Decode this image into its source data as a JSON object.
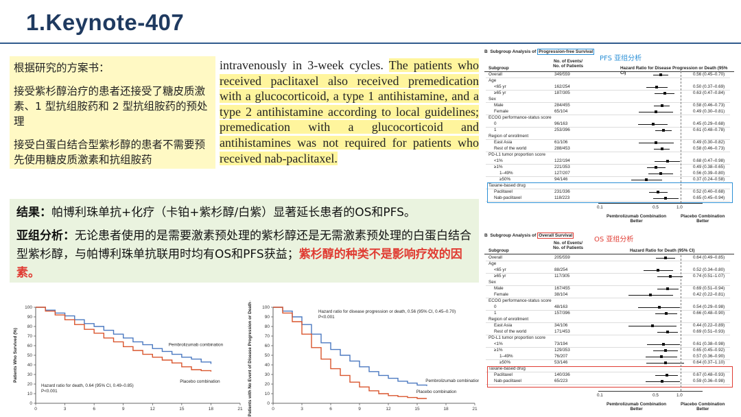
{
  "title": "1.Keynote-407",
  "protocol_box": {
    "heading": "根据研究的方案书：",
    "p1": "接受紫杉醇治疗的患者还接受了糖皮质激素、1 型抗组胺药和 2 型抗组胺药的预处理",
    "p2": "接受白蛋白结合型紫杉醇的患者不需要预先使用糖皮质激素和抗组胺药"
  },
  "quote": {
    "plain": "intravenously in 3-week cycles. ",
    "highlighted": "The patients who received paclitaxel also received premedication with a glucocorticoid, a type 1 antihistamine, and a type 2 antihistamine according to local guidelines; premedication with a glucocorticoid and antihistamines was not required for patients who received nab-paclitaxel."
  },
  "results": {
    "label1": "结果：",
    "text1": "帕博利珠单抗+化疗（卡铂+紫杉醇/白紫）显著延长患者的OS和PFS。",
    "label2": "亚组分析：",
    "text2": "无论患者使用的是需要激素预处理的紫杉醇还是无需激素预处理的白蛋白结合型紫杉醇，与帕博利珠单抗联用时均有OS和PFS获益；",
    "text2_red": "紫杉醇的种类不是影响疗效的因素。"
  },
  "pfs_forest": {
    "tag": "PFS 亚组分析",
    "panel_prefix": "B",
    "title_a": "Subgroup Analysis of ",
    "title_b": "Progression-free Survival",
    "col_subgroup": "Subgroup",
    "col_events_1": "No. of Events/",
    "col_events_2": "No. of Patients",
    "col_hr": "Hazard Ratio for Disease Progression or Death (95% CI)",
    "axis_ticks": [
      "0.1",
      "0.5",
      "1.0"
    ],
    "favor_left_1": "Pembrolizumab Combination",
    "favor_left_2": "Better",
    "favor_right_1": "Placebo Combination",
    "favor_right_2": "Better",
    "rows": [
      {
        "label": "Overall",
        "indent": 0,
        "n": "349/559",
        "hr": 0.56,
        "lo": 0.45,
        "hi": 0.7,
        "txt": "0.56 (0.45–0.70)"
      },
      {
        "label": "Age",
        "indent": 0,
        "n": "",
        "hr": null,
        "txt": ""
      },
      {
        "label": "<65 yr",
        "indent": 1,
        "n": "162/254",
        "hr": 0.5,
        "lo": 0.37,
        "hi": 0.69,
        "txt": "0.50 (0.37–0.69)"
      },
      {
        "label": "≥65 yr",
        "indent": 1,
        "n": "187/305",
        "hr": 0.63,
        "lo": 0.47,
        "hi": 0.84,
        "txt": "0.63 (0.47–0.84)"
      },
      {
        "label": "Sex",
        "indent": 0,
        "n": "",
        "hr": null,
        "txt": ""
      },
      {
        "label": "Male",
        "indent": 1,
        "n": "284/455",
        "hr": 0.58,
        "lo": 0.46,
        "hi": 0.73,
        "txt": "0.58 (0.46–0.73)"
      },
      {
        "label": "Female",
        "indent": 1,
        "n": "65/104",
        "hr": 0.49,
        "lo": 0.3,
        "hi": 0.81,
        "txt": "0.49 (0.30–0.81)"
      },
      {
        "label": "ECOG performance-status score",
        "indent": 0,
        "n": "",
        "hr": null,
        "txt": ""
      },
      {
        "label": "0",
        "indent": 1,
        "n": "96/163",
        "hr": 0.45,
        "lo": 0.29,
        "hi": 0.68,
        "txt": "0.45 (0.29–0.68)"
      },
      {
        "label": "1",
        "indent": 1,
        "n": "253/396",
        "hr": 0.61,
        "lo": 0.48,
        "hi": 0.78,
        "txt": "0.61 (0.48–0.78)"
      },
      {
        "label": "Region of enrollment",
        "indent": 0,
        "n": "",
        "hr": null,
        "txt": ""
      },
      {
        "label": "East Asia",
        "indent": 1,
        "n": "61/106",
        "hr": 0.49,
        "lo": 0.3,
        "hi": 0.82,
        "txt": "0.49 (0.30–0.82)"
      },
      {
        "label": "Rest of the world",
        "indent": 1,
        "n": "288/453",
        "hr": 0.58,
        "lo": 0.46,
        "hi": 0.73,
        "txt": "0.58 (0.46–0.73)"
      },
      {
        "label": "PD-L1 tumor proportion score",
        "indent": 0,
        "n": "",
        "hr": null,
        "txt": ""
      },
      {
        "label": "<1%",
        "indent": 1,
        "n": "122/194",
        "hr": 0.68,
        "lo": 0.47,
        "hi": 0.98,
        "txt": "0.68 (0.47–0.98)"
      },
      {
        "label": "≥1%",
        "indent": 1,
        "n": "221/353",
        "hr": 0.49,
        "lo": 0.38,
        "hi": 0.65,
        "txt": "0.49 (0.38–0.65)"
      },
      {
        "label": "1–49%",
        "indent": 2,
        "n": "127/207",
        "hr": 0.56,
        "lo": 0.39,
        "hi": 0.8,
        "txt": "0.56 (0.39–0.80)"
      },
      {
        "label": "≥50%",
        "indent": 2,
        "n": "94/146",
        "hr": 0.37,
        "lo": 0.24,
        "hi": 0.58,
        "txt": "0.37 (0.24–0.58)"
      },
      {
        "label": "Taxane-based drug",
        "indent": 0,
        "n": "",
        "hr": null,
        "txt": ""
      },
      {
        "label": "Paclitaxel",
        "indent": 1,
        "n": "231/336",
        "hr": 0.52,
        "lo": 0.4,
        "hi": 0.68,
        "txt": "0.52 (0.40–0.68)"
      },
      {
        "label": "Nab-paclitaxel",
        "indent": 1,
        "n": "118/223",
        "hr": 0.65,
        "lo": 0.45,
        "hi": 0.94,
        "txt": "0.65 (0.45–0.94)"
      }
    ]
  },
  "os_forest": {
    "tag": "OS 亚组分析",
    "panel_prefix": "B",
    "title_a": "Subgroup Analysis of ",
    "title_b": "Overall Survival",
    "col_subgroup": "Subgroup",
    "col_events_1": "No. of Events/",
    "col_events_2": "No. of Patients",
    "col_hr": "Hazard Ratio for Death (95% CI)",
    "axis_ticks": [
      "0.1",
      "0.5",
      "1.0"
    ],
    "favor_left_1": "Pembrolizumab Combination",
    "favor_left_2": "Better",
    "favor_right_1": "Placebo Combination",
    "favor_right_2": "Better",
    "rows": [
      {
        "label": "Overall",
        "indent": 0,
        "n": "205/559",
        "hr": 0.64,
        "lo": 0.49,
        "hi": 0.85,
        "txt": "0.64 (0.49–0.85)"
      },
      {
        "label": "Age",
        "indent": 0,
        "n": "",
        "hr": null,
        "txt": ""
      },
      {
        "label": "<65 yr",
        "indent": 1,
        "n": "88/254",
        "hr": 0.52,
        "lo": 0.34,
        "hi": 0.8,
        "txt": "0.52 (0.34–0.80)"
      },
      {
        "label": "≥65 yr",
        "indent": 1,
        "n": "117/305",
        "hr": 0.74,
        "lo": 0.51,
        "hi": 1.07,
        "txt": "0.74 (0.51–1.07)"
      },
      {
        "label": "Sex",
        "indent": 0,
        "n": "",
        "hr": null,
        "txt": ""
      },
      {
        "label": "Male",
        "indent": 1,
        "n": "167/455",
        "hr": 0.69,
        "lo": 0.51,
        "hi": 0.94,
        "txt": "0.69 (0.51–0.94)"
      },
      {
        "label": "Female",
        "indent": 1,
        "n": "38/104",
        "hr": 0.42,
        "lo": 0.22,
        "hi": 0.81,
        "txt": "0.42 (0.22–0.81)"
      },
      {
        "label": "ECOG performance-status score",
        "indent": 0,
        "n": "",
        "hr": null,
        "txt": ""
      },
      {
        "label": "0",
        "indent": 1,
        "n": "48/163",
        "hr": 0.54,
        "lo": 0.29,
        "hi": 0.98,
        "txt": "0.54 (0.29–0.98)"
      },
      {
        "label": "1",
        "indent": 1,
        "n": "157/396",
        "hr": 0.66,
        "lo": 0.48,
        "hi": 0.9,
        "txt": "0.66 (0.48–0.90)"
      },
      {
        "label": "Region of enrollment",
        "indent": 0,
        "n": "",
        "hr": null,
        "txt": ""
      },
      {
        "label": "East Asia",
        "indent": 1,
        "n": "34/106",
        "hr": 0.44,
        "lo": 0.22,
        "hi": 0.89,
        "txt": "0.44 (0.22–0.89)"
      },
      {
        "label": "Rest of the world",
        "indent": 1,
        "n": "171/453",
        "hr": 0.69,
        "lo": 0.51,
        "hi": 0.93,
        "txt": "0.69 (0.51–0.93)"
      },
      {
        "label": "PD-L1 tumor proportion score",
        "indent": 0,
        "n": "",
        "hr": null,
        "txt": ""
      },
      {
        "label": "<1%",
        "indent": 1,
        "n": "73/194",
        "hr": 0.61,
        "lo": 0.38,
        "hi": 0.98,
        "txt": "0.61 (0.38–0.98)"
      },
      {
        "label": "≥1%",
        "indent": 1,
        "n": "129/353",
        "hr": 0.65,
        "lo": 0.45,
        "hi": 0.92,
        "txt": "0.65 (0.45–0.92)"
      },
      {
        "label": "1–49%",
        "indent": 2,
        "n": "76/207",
        "hr": 0.57,
        "lo": 0.36,
        "hi": 0.9,
        "txt": "0.57 (0.36–0.90)"
      },
      {
        "label": "≥50%",
        "indent": 2,
        "n": "53/146",
        "hr": 0.64,
        "lo": 0.37,
        "hi": 1.1,
        "txt": "0.64 (0.37–1.10)"
      },
      {
        "label": "Taxane-based drug",
        "indent": 0,
        "n": "",
        "hr": null,
        "txt": ""
      },
      {
        "label": "Paclitaxel",
        "indent": 1,
        "n": "140/336",
        "hr": 0.67,
        "lo": 0.48,
        "hi": 0.93,
        "txt": "0.67 (0.48–0.93)"
      },
      {
        "label": "Nab-paclitaxel",
        "indent": 1,
        "n": "65/223",
        "hr": 0.59,
        "lo": 0.36,
        "hi": 0.98,
        "txt": "0.59 (0.36–0.98)"
      }
    ]
  },
  "chart_data": [
    {
      "type": "line",
      "ylabel": "Patients Who Survived (%)",
      "xlabel": "",
      "xlim": [
        0,
        21
      ],
      "ylim": [
        0,
        100
      ],
      "x_ticks": [
        "0",
        "3",
        "6",
        "9",
        "12",
        "15",
        "18",
        "21"
      ],
      "y_ticks": [
        "0",
        "10",
        "20",
        "30",
        "40",
        "50",
        "60",
        "70",
        "80",
        "90",
        "100"
      ],
      "annotation_1": "Hazard ratio for death, 0.64 (95% CI, 0.49–0.85)",
      "annotation_2": "P<0.001",
      "colors": {
        "pembrolizumab": "#4a78c0",
        "placebo": "#d9542c"
      },
      "series": [
        {
          "name": "Pembrolizumab combination",
          "x": [
            0,
            1,
            2,
            3,
            4,
            5,
            6,
            7,
            8,
            9,
            10,
            11,
            12,
            13,
            14,
            15,
            16,
            17,
            18
          ],
          "y": [
            100,
            97,
            94,
            91,
            87,
            83,
            80,
            76,
            72,
            68,
            64,
            61,
            57,
            54,
            51,
            48,
            46,
            43,
            41
          ]
        },
        {
          "name": "Placebo combination",
          "x": [
            0,
            1,
            2,
            3,
            4,
            5,
            6,
            7,
            8,
            9,
            10,
            11,
            12,
            13,
            14,
            15,
            16,
            17,
            18
          ],
          "y": [
            100,
            96,
            92,
            87,
            82,
            77,
            73,
            68,
            64,
            59,
            55,
            51,
            48,
            45,
            42,
            38,
            35,
            34,
            33
          ]
        }
      ]
    },
    {
      "type": "line",
      "ylabel": "Patients with No Event of Disease Progression or Death (%)",
      "xlabel": "",
      "xlim": [
        0,
        21
      ],
      "ylim": [
        0,
        100
      ],
      "x_ticks": [
        "0",
        "3",
        "6",
        "9",
        "12",
        "15",
        "18",
        "21"
      ],
      "y_ticks": [
        "0",
        "10",
        "20",
        "30",
        "40",
        "50",
        "60",
        "70",
        "80",
        "90",
        "100"
      ],
      "annotation_1": "Hazard ratio for disease progression or death, 0.56 (95% CI, 0.45–0.70)",
      "annotation_2": "P<0.001",
      "colors": {
        "pembrolizumab": "#4a78c0",
        "placebo": "#d9542c"
      },
      "series": [
        {
          "name": "Pembrolizumab combination",
          "x": [
            0,
            1,
            2,
            3,
            4,
            5,
            6,
            7,
            8,
            9,
            10,
            11,
            12,
            13,
            14,
            15,
            16
          ],
          "y": [
            100,
            96,
            90,
            82,
            72,
            63,
            56,
            50,
            44,
            38,
            33,
            29,
            26,
            23,
            21,
            19,
            18
          ]
        },
        {
          "name": "Placebo combination",
          "x": [
            0,
            1,
            2,
            3,
            4,
            5,
            6,
            7,
            8,
            9,
            10,
            11,
            12,
            13,
            14,
            15,
            16
          ],
          "y": [
            100,
            94,
            85,
            72,
            58,
            46,
            36,
            29,
            22,
            17,
            13,
            10,
            8,
            7,
            6,
            5,
            5
          ]
        }
      ]
    }
  ]
}
